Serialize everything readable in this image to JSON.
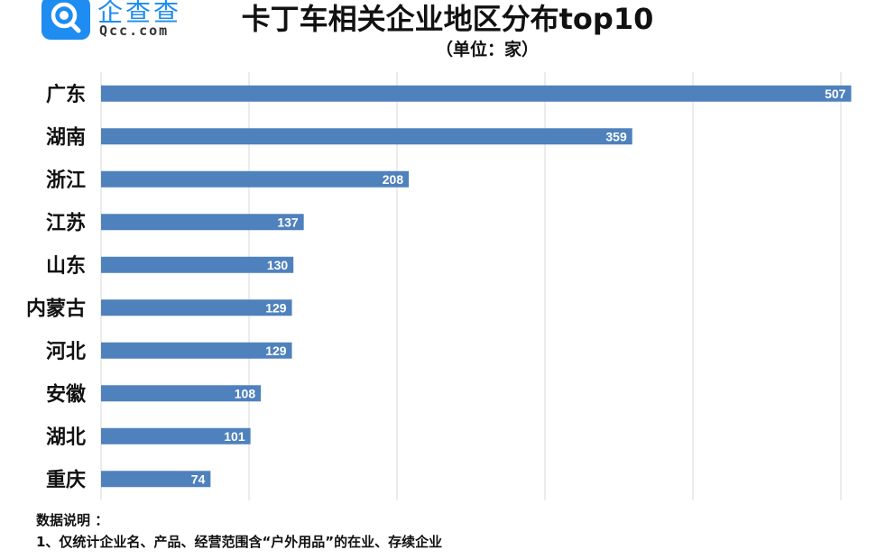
{
  "logo": {
    "brand_cn": "企查查",
    "brand_en": "Qcc.com",
    "icon": "qcc-magnifier-logo-icon"
  },
  "header": {
    "title": "卡丁车相关企业地区分布top10",
    "subtitle": "（单位：家）"
  },
  "notes": {
    "heading": "数据说明 ：",
    "line1": "1、仅统计企业名、产品、经营范围含“户外用品”的在业、存续企业"
  },
  "colors": {
    "bar": "#4f81bd",
    "grid": "#d9d9d9",
    "label": "#ffffff"
  },
  "chart_data": {
    "type": "bar",
    "orientation": "horizontal",
    "title": "卡丁车相关企业地区分布top10",
    "subtitle": "（单位：家）",
    "categories": [
      "广东",
      "湖南",
      "浙江",
      "江苏",
      "山东",
      "内蒙古",
      "河北",
      "安徽",
      "湖北",
      "重庆"
    ],
    "values": [
      507,
      359,
      208,
      137,
      130,
      129,
      129,
      108,
      101,
      74
    ],
    "xlim": [
      0,
      500
    ],
    "grid": true,
    "data_labels": true
  }
}
